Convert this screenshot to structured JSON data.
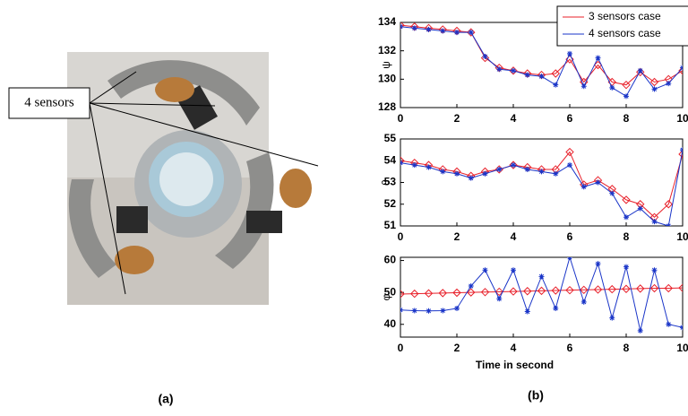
{
  "figure": {
    "annotation": "4 sensors",
    "label_a": "(a)",
    "label_b": "(b)"
  },
  "chart_data": [
    {
      "type": "line",
      "y_label": "ψ",
      "legend": "upper right",
      "grid": false,
      "x": [
        0,
        0.5,
        1,
        1.5,
        2,
        2.5,
        3,
        3.5,
        4,
        4.5,
        5,
        5.5,
        6,
        6.5,
        7,
        7.5,
        8,
        8.5,
        9,
        9.5,
        10
      ],
      "xlim": [
        0,
        10
      ],
      "xticks": [
        0,
        2,
        4,
        6,
        8,
        10
      ],
      "ylim": [
        128,
        134
      ],
      "yticks": [
        128,
        130,
        132,
        134
      ],
      "series": [
        {
          "name": "3 sensors case",
          "color": "#e8202a",
          "marker": "diamond",
          "values": [
            133.8,
            133.7,
            133.6,
            133.5,
            133.4,
            133.3,
            131.5,
            130.8,
            130.6,
            130.4,
            130.3,
            130.4,
            131.4,
            129.8,
            131.0,
            129.8,
            129.6,
            130.5,
            129.8,
            130.0,
            130.6
          ]
        },
        {
          "name": "4 sensors case",
          "color": "#1a35c8",
          "marker": "star",
          "values": [
            133.7,
            133.6,
            133.5,
            133.4,
            133.3,
            133.3,
            131.6,
            130.7,
            130.6,
            130.3,
            130.2,
            129.6,
            131.8,
            129.5,
            131.5,
            129.4,
            128.8,
            130.6,
            129.3,
            129.7,
            130.8
          ]
        }
      ]
    },
    {
      "type": "line",
      "y_label": "θ",
      "grid": false,
      "x": [
        0,
        0.5,
        1,
        1.5,
        2,
        2.5,
        3,
        3.5,
        4,
        4.5,
        5,
        5.5,
        6,
        6.5,
        7,
        7.5,
        8,
        8.5,
        9,
        9.5,
        10
      ],
      "xlim": [
        0,
        10
      ],
      "xticks": [
        0,
        2,
        4,
        6,
        8,
        10
      ],
      "ylim": [
        51,
        55
      ],
      "yticks": [
        51,
        52,
        53,
        54,
        55
      ],
      "series": [
        {
          "color": "#e8202a",
          "marker": "diamond",
          "values": [
            54.0,
            53.9,
            53.8,
            53.6,
            53.5,
            53.3,
            53.5,
            53.6,
            53.8,
            53.7,
            53.6,
            53.6,
            54.4,
            52.9,
            53.1,
            52.7,
            52.2,
            52.0,
            51.4,
            52.0,
            54.3
          ]
        },
        {
          "color": "#1a35c8",
          "marker": "star",
          "values": [
            53.9,
            53.8,
            53.7,
            53.5,
            53.4,
            53.2,
            53.4,
            53.6,
            53.8,
            53.6,
            53.5,
            53.4,
            53.8,
            52.8,
            53.0,
            52.5,
            51.4,
            51.8,
            51.2,
            51.0,
            54.5
          ]
        }
      ]
    },
    {
      "type": "line",
      "y_label": "φ",
      "x_label": "Time in second",
      "grid": false,
      "x": [
        0,
        0.5,
        1,
        1.5,
        2,
        2.5,
        3,
        3.5,
        4,
        4.5,
        5,
        5.5,
        6,
        6.5,
        7,
        7.5,
        8,
        8.5,
        9,
        9.5,
        10
      ],
      "xlim": [
        0,
        10
      ],
      "xticks": [
        0,
        2,
        4,
        6,
        8,
        10
      ],
      "ylim": [
        36,
        61
      ],
      "yticks": [
        40,
        50,
        60
      ],
      "series": [
        {
          "color": "#e8202a",
          "marker": "diamond",
          "values": [
            49.5,
            49.6,
            49.7,
            49.8,
            49.9,
            50.0,
            50.1,
            50.2,
            50.3,
            50.4,
            50.5,
            50.6,
            50.7,
            50.8,
            50.9,
            51.0,
            51.1,
            51.2,
            51.3,
            51.3,
            51.4
          ]
        },
        {
          "color": "#1a35c8",
          "marker": "star",
          "values": [
            44.5,
            44.3,
            44.2,
            44.3,
            45,
            52,
            57,
            48,
            57,
            44,
            55,
            45,
            61,
            47,
            59,
            42,
            58,
            38,
            57,
            40,
            39
          ]
        }
      ]
    }
  ]
}
